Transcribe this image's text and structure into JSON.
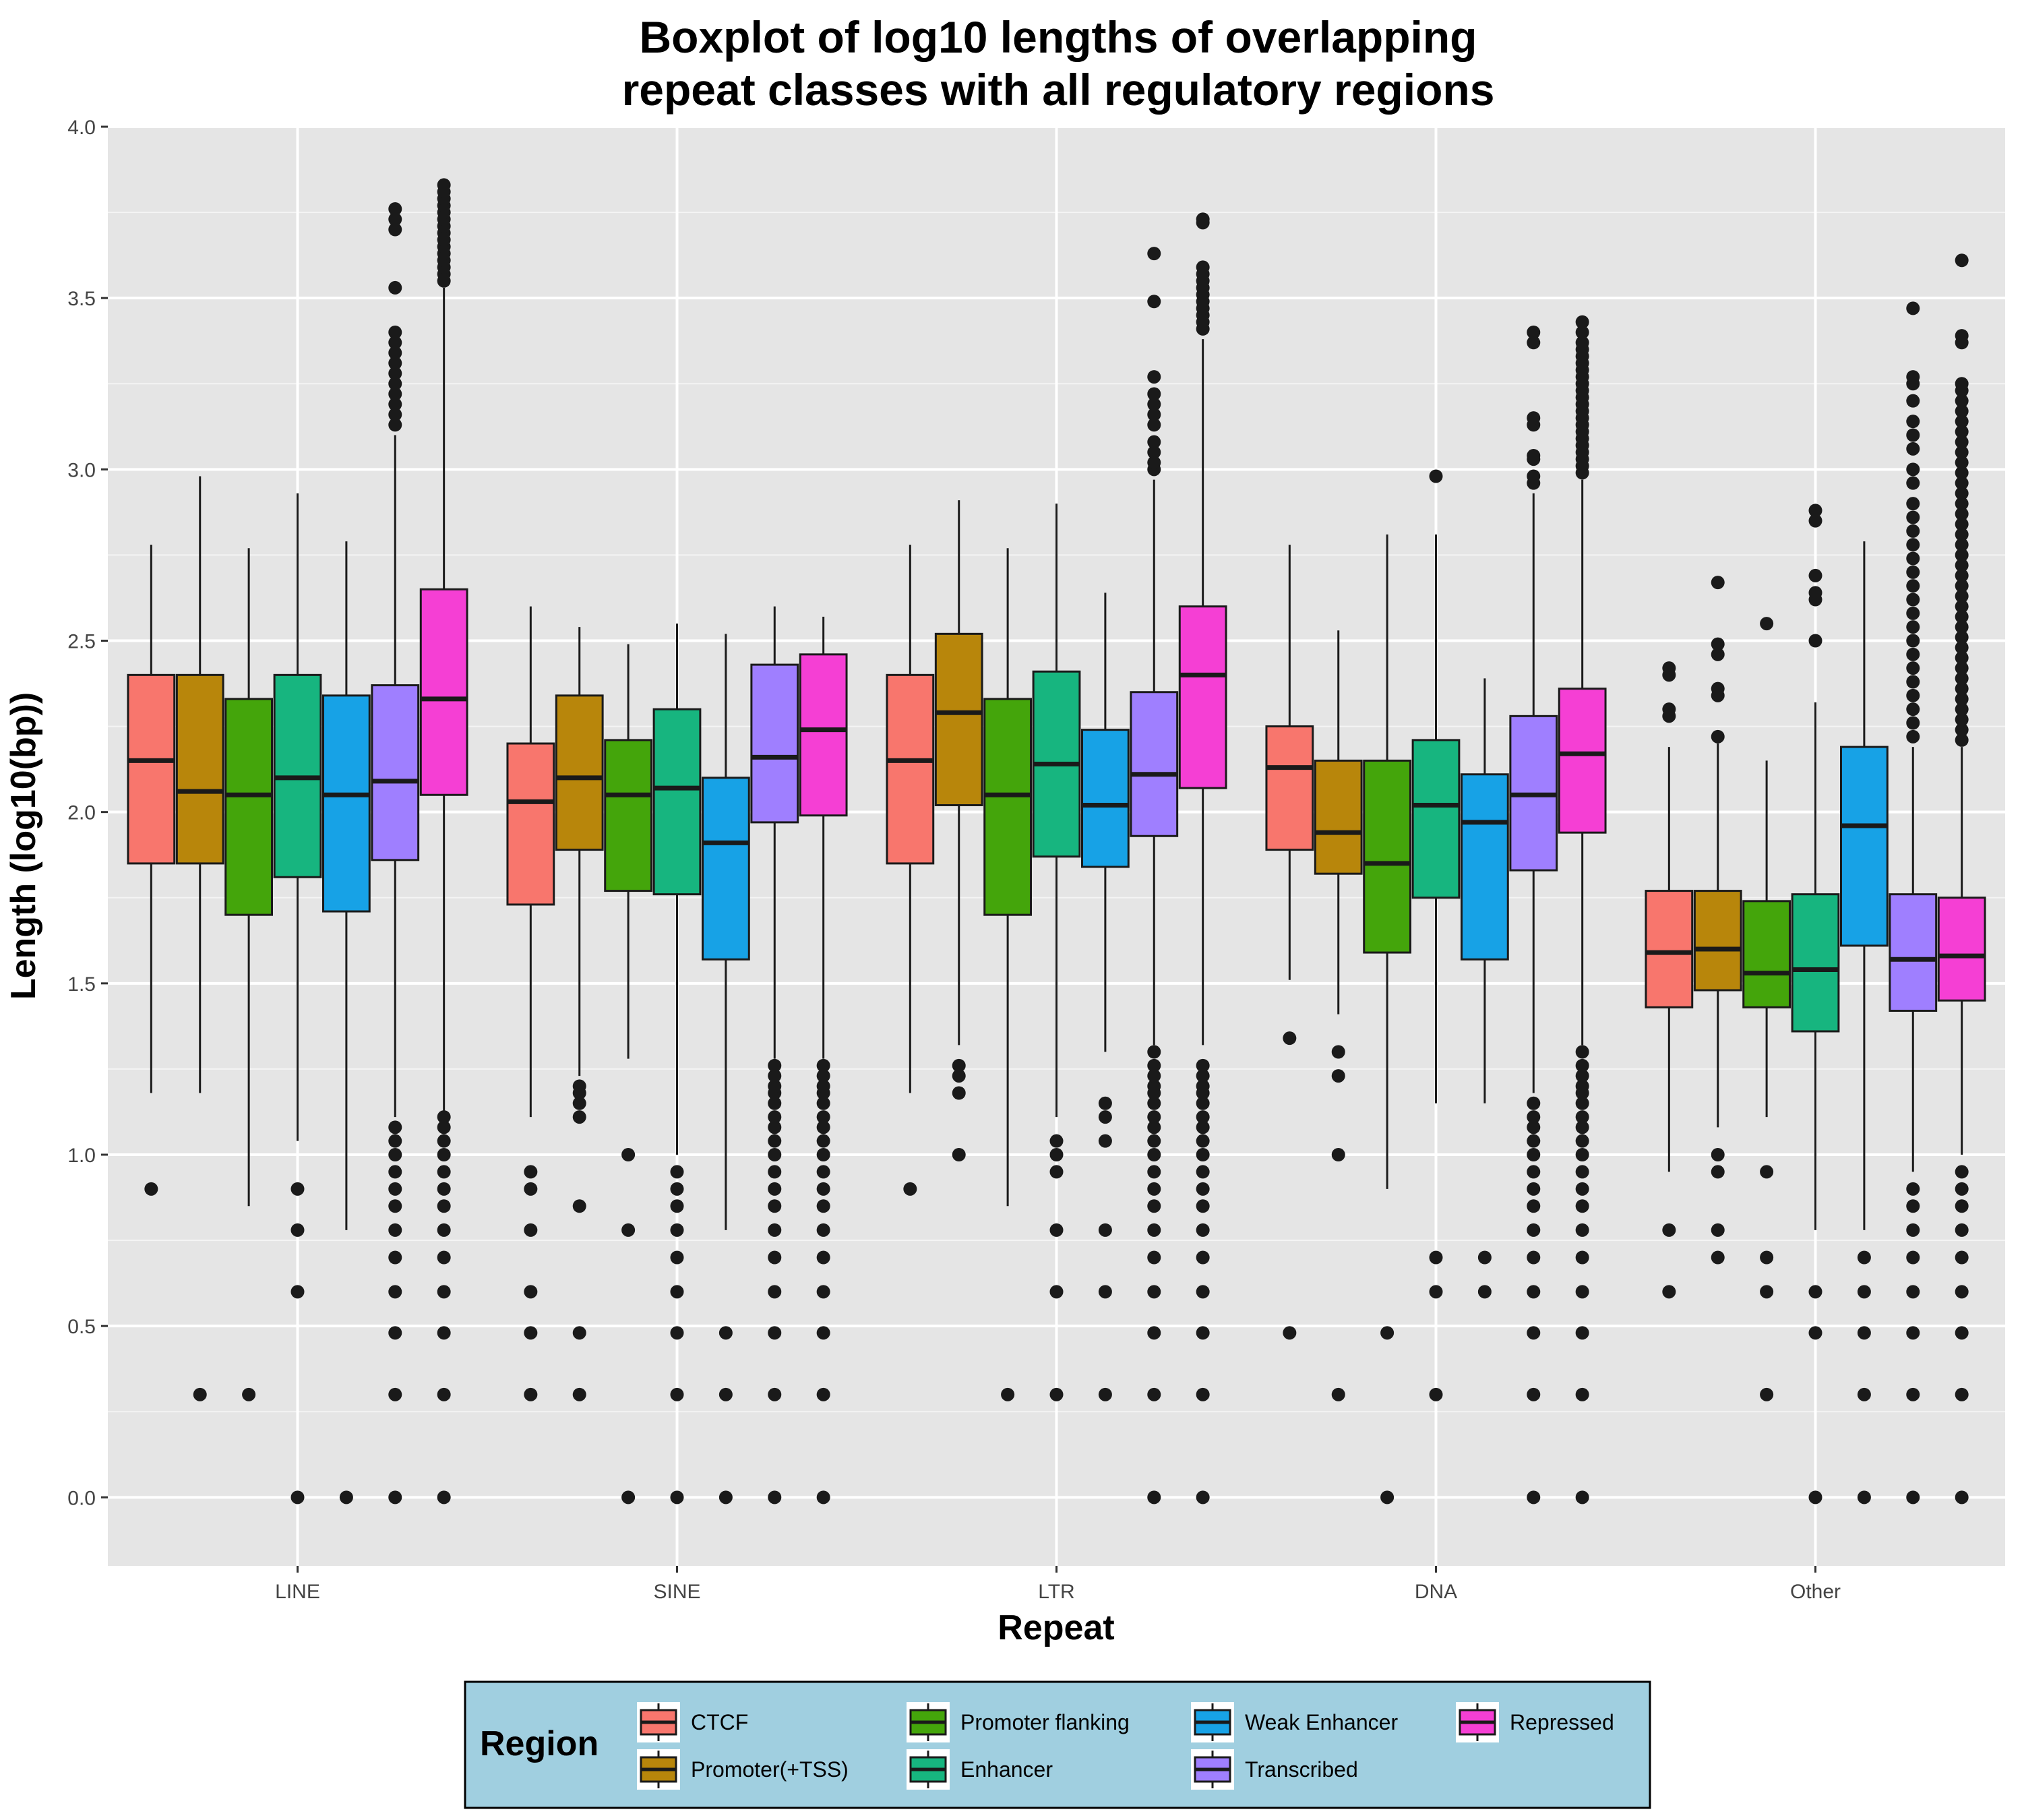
{
  "chart_data": {
    "type": "boxplot",
    "title": [
      "Boxplot of log10 lengths of overlapping",
      "repeat classes with all regulatory regions"
    ],
    "xlabel": "Repeat",
    "ylabel": "Length (log10(bp))",
    "ylim": [
      -0.2,
      4.0
    ],
    "yticks": [
      "0.0",
      "0.5",
      "1.0",
      "1.5",
      "2.0",
      "2.5",
      "3.0",
      "3.5",
      "4.0"
    ],
    "grid": true,
    "legend": {
      "title": "Region",
      "position": "bottom"
    },
    "categories": [
      "LINE",
      "SINE",
      "LTR",
      "DNA",
      "Other"
    ],
    "series": [
      {
        "name": "CTCF",
        "color": "#F8766D",
        "boxes": [
          {
            "q1": 1.85,
            "median": 2.15,
            "q3": 2.4,
            "whisker_low": 1.18,
            "whisker_high": 2.78,
            "outliers": [
              0.9
            ]
          },
          {
            "q1": 1.73,
            "median": 2.03,
            "q3": 2.2,
            "whisker_low": 1.11,
            "whisker_high": 2.6,
            "outliers": [
              0.3,
              0.48,
              0.6,
              0.78,
              0.9,
              0.95
            ]
          },
          {
            "q1": 1.85,
            "median": 2.15,
            "q3": 2.4,
            "whisker_low": 1.18,
            "whisker_high": 2.78,
            "outliers": [
              0.9
            ]
          },
          {
            "q1": 1.89,
            "median": 2.13,
            "q3": 2.25,
            "whisker_low": 1.51,
            "whisker_high": 2.78,
            "outliers": [
              0.48,
              1.34
            ]
          },
          {
            "q1": 1.43,
            "median": 1.59,
            "q3": 1.77,
            "whisker_low": 0.95,
            "whisker_high": 2.19,
            "outliers": [
              0.6,
              0.78,
              2.28,
              2.3,
              2.4,
              2.42
            ]
          }
        ]
      },
      {
        "name": "Promoter(+TSS)",
        "color": "#B8860B",
        "boxes": [
          {
            "q1": 1.85,
            "median": 2.06,
            "q3": 2.4,
            "whisker_low": 1.18,
            "whisker_high": 2.98,
            "outliers": [
              0.3
            ]
          },
          {
            "q1": 1.89,
            "median": 2.1,
            "q3": 2.34,
            "whisker_low": 1.23,
            "whisker_high": 2.54,
            "outliers": [
              0.3,
              0.48,
              0.85,
              1.11,
              1.15,
              1.18,
              1.2
            ]
          },
          {
            "q1": 2.02,
            "median": 2.29,
            "q3": 2.52,
            "whisker_low": 1.32,
            "whisker_high": 2.91,
            "outliers": [
              1.0,
              1.18,
              1.23,
              1.26
            ]
          },
          {
            "q1": 1.82,
            "median": 1.94,
            "q3": 2.15,
            "whisker_low": 1.41,
            "whisker_high": 2.53,
            "outliers": [
              0.3,
              1.0,
              1.23,
              1.3
            ]
          },
          {
            "q1": 1.48,
            "median": 1.6,
            "q3": 1.77,
            "whisker_low": 1.08,
            "whisker_high": 2.2,
            "outliers": [
              0.7,
              0.78,
              0.95,
              1.0,
              2.22,
              2.34,
              2.36,
              2.46,
              2.49,
              2.67
            ]
          }
        ]
      },
      {
        "name": "Promoter flanking",
        "color": "#44A50B",
        "boxes": [
          {
            "q1": 1.7,
            "median": 2.05,
            "q3": 2.33,
            "whisker_low": 0.85,
            "whisker_high": 2.77,
            "outliers": [
              0.3
            ]
          },
          {
            "q1": 1.77,
            "median": 2.05,
            "q3": 2.21,
            "whisker_low": 1.28,
            "whisker_high": 2.49,
            "outliers": [
              0.0,
              0.78,
              1.0
            ]
          },
          {
            "q1": 1.7,
            "median": 2.05,
            "q3": 2.33,
            "whisker_low": 0.85,
            "whisker_high": 2.77,
            "outliers": [
              0.3
            ]
          },
          {
            "q1": 1.59,
            "median": 1.85,
            "q3": 2.15,
            "whisker_low": 0.9,
            "whisker_high": 2.81,
            "outliers": [
              0.0,
              0.48
            ]
          },
          {
            "q1": 1.43,
            "median": 1.53,
            "q3": 1.74,
            "whisker_low": 1.11,
            "whisker_high": 2.15,
            "outliers": [
              0.3,
              0.6,
              0.7,
              0.95,
              2.55
            ]
          }
        ]
      },
      {
        "name": "Enhancer",
        "color": "#17B57F",
        "boxes": [
          {
            "q1": 1.81,
            "median": 2.1,
            "q3": 2.4,
            "whisker_low": 1.04,
            "whisker_high": 2.93,
            "outliers": [
              0.0,
              0.6,
              0.78,
              0.9
            ]
          },
          {
            "q1": 1.76,
            "median": 2.07,
            "q3": 2.3,
            "whisker_low": 1.0,
            "whisker_high": 2.55,
            "outliers": [
              0.0,
              0.3,
              0.48,
              0.6,
              0.7,
              0.78,
              0.85,
              0.9,
              0.95
            ]
          },
          {
            "q1": 1.87,
            "median": 2.14,
            "q3": 2.41,
            "whisker_low": 1.11,
            "whisker_high": 2.9,
            "outliers": [
              0.3,
              0.6,
              0.78,
              0.95,
              1.0,
              1.04
            ]
          },
          {
            "q1": 1.75,
            "median": 2.02,
            "q3": 2.21,
            "whisker_low": 1.15,
            "whisker_high": 2.81,
            "outliers": [
              0.3,
              0.6,
              0.7,
              2.98
            ]
          },
          {
            "q1": 1.36,
            "median": 1.54,
            "q3": 1.76,
            "whisker_low": 0.78,
            "whisker_high": 2.32,
            "outliers": [
              0.0,
              0.48,
              0.6,
              2.5,
              2.62,
              2.64,
              2.69,
              2.85,
              2.88
            ]
          }
        ]
      },
      {
        "name": "Weak Enhancer",
        "color": "#17A2E6",
        "boxes": [
          {
            "q1": 1.71,
            "median": 2.05,
            "q3": 2.34,
            "whisker_low": 0.78,
            "whisker_high": 2.79,
            "outliers": [
              0.0
            ]
          },
          {
            "q1": 1.57,
            "median": 1.91,
            "q3": 2.1,
            "whisker_low": 0.78,
            "whisker_high": 2.52,
            "outliers": [
              0.0,
              0.3,
              0.48
            ]
          },
          {
            "q1": 1.84,
            "median": 2.02,
            "q3": 2.24,
            "whisker_low": 1.3,
            "whisker_high": 2.64,
            "outliers": [
              0.3,
              0.6,
              0.78,
              1.04,
              1.11,
              1.15
            ]
          },
          {
            "q1": 1.57,
            "median": 1.97,
            "q3": 2.11,
            "whisker_low": 1.15,
            "whisker_high": 2.39,
            "outliers": [
              0.6,
              0.7
            ]
          },
          {
            "q1": 1.61,
            "median": 1.96,
            "q3": 2.19,
            "whisker_low": 0.78,
            "whisker_high": 2.79,
            "outliers": [
              0.0,
              0.3,
              0.48,
              0.6,
              0.7
            ]
          }
        ]
      },
      {
        "name": "Transcribed",
        "color": "#9F7FFF",
        "boxes": [
          {
            "q1": 1.86,
            "median": 2.09,
            "q3": 2.37,
            "whisker_low": 1.11,
            "whisker_high": 3.1,
            "outliers": [
              0.0,
              0.3,
              0.48,
              0.6,
              0.7,
              0.78,
              0.85,
              0.9,
              0.95,
              1.0,
              1.04,
              1.08,
              3.13,
              3.16,
              3.19,
              3.22,
              3.25,
              3.28,
              3.31,
              3.34,
              3.37,
              3.4,
              3.53,
              3.7,
              3.73,
              3.76
            ]
          },
          {
            "q1": 1.97,
            "median": 2.16,
            "q3": 2.43,
            "whisker_low": 1.28,
            "whisker_high": 2.6,
            "outliers": [
              0.0,
              0.3,
              0.48,
              0.6,
              0.7,
              0.78,
              0.85,
              0.9,
              0.95,
              1.0,
              1.04,
              1.08,
              1.11,
              1.15,
              1.18,
              1.2,
              1.23,
              1.26
            ]
          },
          {
            "q1": 1.93,
            "median": 2.11,
            "q3": 2.35,
            "whisker_low": 1.32,
            "whisker_high": 2.97,
            "outliers": [
              0.0,
              0.3,
              0.48,
              0.6,
              0.7,
              0.78,
              0.85,
              0.9,
              0.95,
              1.0,
              1.04,
              1.08,
              1.11,
              1.15,
              1.18,
              1.2,
              1.23,
              1.26,
              1.3,
              3.0,
              3.02,
              3.05,
              3.08,
              3.13,
              3.16,
              3.19,
              3.22,
              3.27,
              3.49,
              3.63
            ]
          },
          {
            "q1": 1.83,
            "median": 2.05,
            "q3": 2.28,
            "whisker_low": 1.18,
            "whisker_high": 2.93,
            "outliers": [
              0.0,
              0.3,
              0.48,
              0.6,
              0.7,
              0.78,
              0.85,
              0.9,
              0.95,
              1.0,
              1.04,
              1.08,
              1.11,
              1.15,
              2.96,
              2.98,
              3.03,
              3.04,
              3.13,
              3.15,
              3.37,
              3.4
            ]
          },
          {
            "q1": 1.42,
            "median": 1.57,
            "q3": 1.76,
            "whisker_low": 0.95,
            "whisker_high": 2.19,
            "outliers": [
              0.0,
              0.3,
              0.48,
              0.6,
              0.7,
              0.78,
              0.85,
              0.9,
              2.22,
              2.26,
              2.3,
              2.34,
              2.38,
              2.42,
              2.46,
              2.5,
              2.54,
              2.58,
              2.62,
              2.66,
              2.7,
              2.74,
              2.78,
              2.82,
              2.86,
              2.9,
              2.96,
              3.0,
              3.06,
              3.1,
              3.14,
              3.2,
              3.25,
              3.27,
              3.47
            ]
          }
        ]
      },
      {
        "name": "Repressed",
        "color": "#F53FD4",
        "boxes": [
          {
            "q1": 2.05,
            "median": 2.33,
            "q3": 2.65,
            "whisker_low": 1.11,
            "whisker_high": 3.53,
            "outliers": [
              0.0,
              0.3,
              0.48,
              0.6,
              0.7,
              0.78,
              0.85,
              0.9,
              0.95,
              1.0,
              1.04,
              1.08,
              1.11,
              3.55,
              3.57,
              3.59,
              3.61,
              3.63,
              3.65,
              3.67,
              3.69,
              3.71,
              3.73,
              3.75,
              3.77,
              3.79,
              3.81,
              3.83
            ]
          },
          {
            "q1": 1.99,
            "median": 2.24,
            "q3": 2.46,
            "whisker_low": 1.28,
            "whisker_high": 2.57,
            "outliers": [
              0.0,
              0.3,
              0.48,
              0.6,
              0.7,
              0.78,
              0.85,
              0.9,
              0.95,
              1.0,
              1.04,
              1.08,
              1.11,
              1.15,
              1.18,
              1.2,
              1.23,
              1.26
            ]
          },
          {
            "q1": 2.07,
            "median": 2.4,
            "q3": 2.6,
            "whisker_low": 1.32,
            "whisker_high": 3.38,
            "outliers": [
              0.0,
              0.3,
              0.48,
              0.6,
              0.7,
              0.78,
              0.85,
              0.9,
              0.95,
              1.0,
              1.04,
              1.08,
              1.11,
              1.15,
              1.18,
              1.2,
              1.23,
              1.26,
              3.41,
              3.43,
              3.45,
              3.47,
              3.49,
              3.51,
              3.53,
              3.55,
              3.57,
              3.59,
              3.72,
              3.73
            ]
          },
          {
            "q1": 1.94,
            "median": 2.17,
            "q3": 2.36,
            "whisker_low": 1.32,
            "whisker_high": 2.97,
            "outliers": [
              0.0,
              0.3,
              0.48,
              0.6,
              0.7,
              0.78,
              0.85,
              0.9,
              0.95,
              1.0,
              1.04,
              1.08,
              1.11,
              1.15,
              1.18,
              1.2,
              1.23,
              1.26,
              1.3,
              2.99,
              3.01,
              3.03,
              3.05,
              3.07,
              3.09,
              3.11,
              3.13,
              3.15,
              3.17,
              3.19,
              3.21,
              3.23,
              3.25,
              3.27,
              3.29,
              3.31,
              3.33,
              3.35,
              3.37,
              3.4,
              3.43
            ]
          },
          {
            "q1": 1.45,
            "median": 1.58,
            "q3": 1.75,
            "whisker_low": 1.0,
            "whisker_high": 2.19,
            "outliers": [
              0.0,
              0.3,
              0.48,
              0.6,
              0.7,
              0.78,
              0.85,
              0.9,
              0.95,
              2.21,
              2.24,
              2.27,
              2.3,
              2.33,
              2.36,
              2.39,
              2.42,
              2.45,
              2.48,
              2.51,
              2.54,
              2.57,
              2.6,
              2.63,
              2.66,
              2.69,
              2.72,
              2.75,
              2.78,
              2.81,
              2.84,
              2.87,
              2.9,
              2.93,
              2.96,
              2.99,
              3.02,
              3.05,
              3.08,
              3.11,
              3.14,
              3.17,
              3.2,
              3.23,
              3.25,
              3.37,
              3.39,
              3.61
            ]
          }
        ]
      }
    ]
  }
}
